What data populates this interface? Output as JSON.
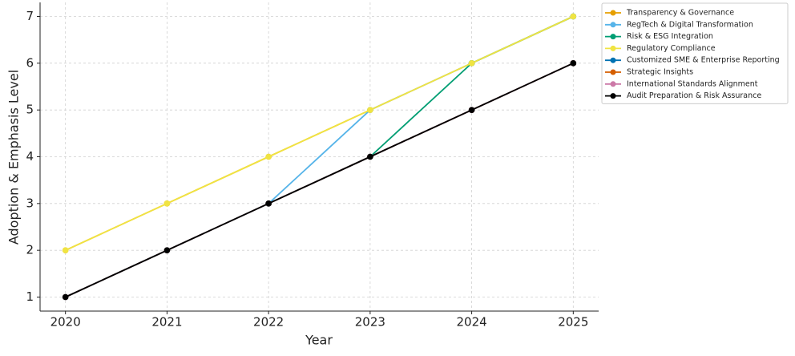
{
  "chart_data": {
    "type": "line",
    "x_label": "Year",
    "y_label": "Adoption & Emphasis Level",
    "x": [
      2020,
      2021,
      2022,
      2023,
      2024,
      2025
    ],
    "series": [
      {
        "name": "Transparency & Governance",
        "color": "#E69F00",
        "values": [
          2,
          3,
          4,
          5,
          6,
          7
        ]
      },
      {
        "name": "RegTech & Digital Transformation",
        "color": "#56B4E9",
        "values": [
          1,
          2,
          3,
          5,
          6,
          7
        ]
      },
      {
        "name": "Risk & ESG Integration",
        "color": "#009E73",
        "values": [
          1,
          2,
          3,
          4,
          6,
          7
        ]
      },
      {
        "name": "Regulatory Compliance",
        "color": "#F0E442",
        "values": [
          2,
          3,
          4,
          5,
          6,
          7
        ]
      },
      {
        "name": "Customized SME & Enterprise Reporting",
        "color": "#0072B2",
        "values": [
          1,
          2,
          3,
          4,
          5,
          6
        ]
      },
      {
        "name": "Strategic Insights",
        "color": "#D55E00",
        "values": [
          1,
          2,
          3,
          4,
          5,
          6
        ]
      },
      {
        "name": "International Standards Alignment",
        "color": "#CC79A7",
        "values": [
          1,
          2,
          3,
          4,
          5,
          6
        ]
      },
      {
        "name": "Audit Preparation & Risk Assurance",
        "color": "#000000",
        "values": [
          1,
          2,
          3,
          4,
          5,
          6
        ]
      }
    ],
    "xlim": [
      2019.75,
      2025.25
    ],
    "ylim": [
      0.7,
      7.3
    ],
    "xticks": [
      2020,
      2021,
      2022,
      2023,
      2024,
      2025
    ],
    "yticks": [
      1,
      2,
      3,
      4,
      5,
      6,
      7
    ],
    "grid": true,
    "legend": "outside-upper-right"
  }
}
